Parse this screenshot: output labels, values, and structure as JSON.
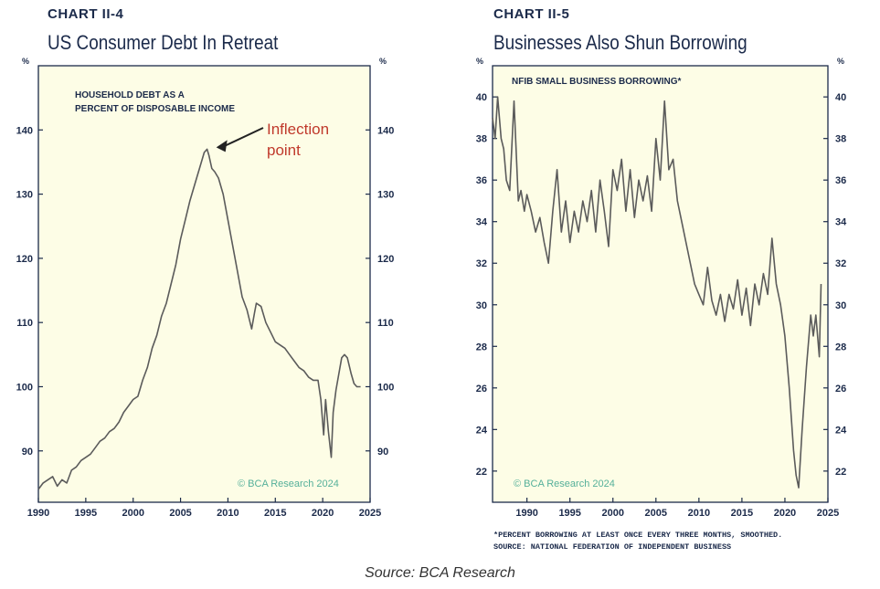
{
  "source": "Source: BCA Research",
  "charts": [
    {
      "label": "CHART II-4",
      "title": "US Consumer Debt In Retreat",
      "inner_title_line1": "HOUSEHOLD DEBT AS A",
      "inner_title_line2": "PERCENT OF DISPOSABLE INCOME",
      "unit_left": "%",
      "unit_right": "%",
      "copyright": "© BCA Research 2024",
      "annotation": "Inflection point",
      "annotation_line1": "Inflection",
      "annotation_line2": "point",
      "footnote_1": "",
      "footnote_2": ""
    },
    {
      "label": "CHART II-5",
      "title": "Businesses Also Shun Borrowing",
      "inner_title": "NFIB SMALL BUSINESS BORROWING*",
      "unit_left": "%",
      "unit_right": "%",
      "copyright": "© BCA Research 2024",
      "footnote_1": "*PERCENT BORROWING AT LEAST ONCE EVERY THREE MONTHS, SMOOTHED.",
      "footnote_2": "SOURCE: NATIONAL FEDERATION OF INDEPENDENT BUSINESS"
    }
  ],
  "colors": {
    "plot_bg": "#fdfde6",
    "line": "#5b5b5b",
    "axis": "#1b2a4a",
    "annotation": "#c0392b",
    "copyright": "#55b09a"
  },
  "chart_data": [
    {
      "type": "line",
      "title": "US Consumer Debt In Retreat",
      "subtitle": "HOUSEHOLD DEBT AS A PERCENT OF DISPOSABLE INCOME",
      "xlabel": "",
      "ylabel": "%",
      "xlim": [
        1990,
        2025
      ],
      "ylim": [
        82,
        150
      ],
      "x_ticks": [
        1990,
        1995,
        2000,
        2005,
        2010,
        2015,
        2020,
        2025
      ],
      "y_ticks": [
        90,
        100,
        110,
        120,
        130,
        140
      ],
      "grid": false,
      "series": [
        {
          "name": "",
          "x": [
            1990,
            1990.5,
            1991,
            1991.5,
            1992,
            1992.5,
            1993,
            1993.5,
            1994,
            1994.5,
            1995,
            1995.5,
            1996,
            1996.5,
            1997,
            1997.5,
            1998,
            1998.5,
            1999,
            1999.5,
            2000,
            2000.5,
            2001,
            2001.5,
            2002,
            2002.5,
            2003,
            2003.5,
            2004,
            2004.5,
            2005,
            2005.5,
            2006,
            2006.5,
            2007,
            2007.5,
            2007.8,
            2008,
            2008.3,
            2008.6,
            2009,
            2009.5,
            2010,
            2010.5,
            2011,
            2011.5,
            2012,
            2012.5,
            2012.8,
            2013,
            2013.5,
            2014,
            2014.5,
            2015,
            2015.5,
            2016,
            2016.5,
            2017,
            2017.5,
            2018,
            2018.5,
            2019,
            2019.5,
            2019.8,
            2020.1,
            2020.3,
            2020.6,
            2020.9,
            2021.1,
            2021.4,
            2021.7,
            2022,
            2022.3,
            2022.6,
            2023,
            2023.3,
            2023.6,
            2024
          ],
          "y": [
            84,
            85,
            85.5,
            86,
            84.5,
            85.5,
            85,
            87,
            87.5,
            88.5,
            89,
            89.5,
            90.5,
            91.5,
            92,
            93,
            93.5,
            94.5,
            96,
            97,
            98,
            98.5,
            101,
            103,
            106,
            108,
            111,
            113,
            116,
            119,
            123,
            126,
            129,
            131.5,
            134,
            136.5,
            137,
            136,
            134,
            133.5,
            132.5,
            130,
            126,
            122,
            118,
            114,
            112,
            109,
            111.5,
            113,
            112.5,
            110,
            108.5,
            107,
            106.5,
            106,
            105,
            104,
            103,
            102.5,
            101.5,
            101,
            101,
            98,
            92.5,
            98,
            93,
            89,
            96,
            99.5,
            102,
            104.5,
            105,
            104.5,
            102,
            100.5,
            100,
            100
          ]
        }
      ],
      "annotations": [
        {
          "text": "Inflection point",
          "x": 2008,
          "y": 137
        }
      ]
    },
    {
      "type": "line",
      "title": "Businesses Also Shun Borrowing",
      "subtitle": "NFIB SMALL BUSINESS BORROWING*",
      "xlabel": "",
      "ylabel": "%",
      "xlim": [
        1986,
        2025
      ],
      "ylim": [
        20.5,
        41.5
      ],
      "x_ticks": [
        1990,
        1995,
        2000,
        2005,
        2010,
        2015,
        2020,
        2025
      ],
      "y_ticks": [
        22,
        24,
        26,
        28,
        30,
        32,
        34,
        36,
        38,
        40
      ],
      "grid": false,
      "series": [
        {
          "name": "",
          "x": [
            1986,
            1986.3,
            1986.6,
            1987,
            1987.3,
            1987.6,
            1988,
            1988.5,
            1989,
            1989.3,
            1989.7,
            1990,
            1990.5,
            1991,
            1991.5,
            1992,
            1992.5,
            1993,
            1993.5,
            1994,
            1994.5,
            1995,
            1995.5,
            1996,
            1996.5,
            1997,
            1997.5,
            1998,
            1998.5,
            1999,
            1999.5,
            2000,
            2000.5,
            2001,
            2001.5,
            2002,
            2002.5,
            2003,
            2003.5,
            2004,
            2004.5,
            2005,
            2005.5,
            2006,
            2006.5,
            2007,
            2007.5,
            2008,
            2008.5,
            2009,
            2009.5,
            2010,
            2010.5,
            2011,
            2011.5,
            2012,
            2012.5,
            2013,
            2013.5,
            2014,
            2014.5,
            2015,
            2015.5,
            2016,
            2016.5,
            2017,
            2017.5,
            2018,
            2018.5,
            2019,
            2019.5,
            2020,
            2020.5,
            2021,
            2021.3,
            2021.6,
            2022,
            2022.5,
            2023,
            2023.3,
            2023.6,
            2024,
            2024.2
          ],
          "y": [
            39,
            38,
            40,
            38,
            37.5,
            36,
            35.5,
            39.8,
            35,
            35.5,
            34.5,
            35.3,
            34.5,
            33.5,
            34.2,
            33,
            32,
            34.5,
            36.5,
            33.5,
            35,
            33,
            34.5,
            33.5,
            35,
            34,
            35.5,
            33.5,
            36,
            34.5,
            32.8,
            36.5,
            35.5,
            37,
            34.5,
            36.5,
            34.2,
            36,
            35,
            36.2,
            34.5,
            38,
            36,
            39.8,
            36.5,
            37,
            35,
            34,
            33,
            32,
            31,
            30.5,
            30,
            31.8,
            30.2,
            29.5,
            30.5,
            29.2,
            30.5,
            29.8,
            31.2,
            29.5,
            30.8,
            29,
            31,
            30,
            31.5,
            30.5,
            33.2,
            31,
            30,
            28.5,
            26,
            23,
            21.8,
            21.2,
            24,
            27,
            29.5,
            28.5,
            29.5,
            27.5,
            31
          ]
        }
      ]
    }
  ]
}
